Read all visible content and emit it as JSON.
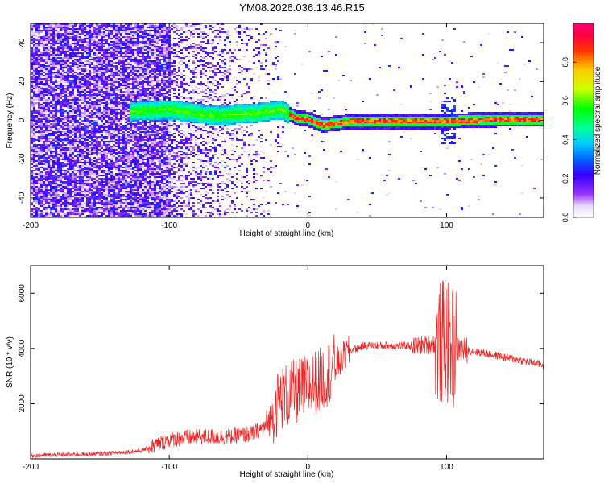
{
  "title": "YM08.2026.036.13.46.R15",
  "colors": {
    "snr_line": "#ee2222",
    "frame": "#000000"
  },
  "chart_data": [
    {
      "type": "heatmap",
      "xlabel": "Height of straight line (km)",
      "ylabel": "Frequency (Hz)",
      "xlim": [
        -200,
        170
      ],
      "ylim": [
        -50,
        50
      ],
      "x_ticks": [
        -200,
        -100,
        0,
        100
      ],
      "y_ticks": [
        -40,
        -20,
        0,
        20,
        40
      ],
      "x_tick_labels": [
        "-200",
        "-100",
        "0",
        "100"
      ],
      "y_tick_labels": [
        "-40",
        "-20",
        "0",
        "20",
        "40"
      ],
      "colorbar": {
        "label": "Normalized spectral amplitude",
        "range": [
          0,
          1
        ],
        "ticks": [
          0.0,
          0.2,
          0.4,
          0.6,
          0.8
        ],
        "tick_labels": [
          "0.0",
          "0.2",
          "0.4",
          "0.6",
          "0.8"
        ],
        "colormap": "rainbow (white-violet-blue-cyan-green-yellow-red-magenta)"
      },
      "signal_center_hz": [
        {
          "x": -130,
          "f": 5
        },
        {
          "x": -100,
          "f": 6
        },
        {
          "x": -70,
          "f": 3
        },
        {
          "x": -40,
          "f": 4
        },
        {
          "x": -20,
          "f": 6
        },
        {
          "x": -10,
          "f": 2
        },
        {
          "x": 0,
          "f": 1
        },
        {
          "x": 10,
          "f": -2
        },
        {
          "x": 30,
          "f": 0
        },
        {
          "x": 100,
          "f": 0
        },
        {
          "x": 140,
          "f": 1
        },
        {
          "x": 170,
          "f": 1
        }
      ],
      "grid": false
    },
    {
      "type": "line",
      "xlabel": "Height of straight line (km)",
      "ylabel": "SNR (10 * v/v)",
      "xlim": [
        -200,
        170
      ],
      "ylim": [
        0,
        7000
      ],
      "x_ticks": [
        -200,
        -100,
        0,
        100
      ],
      "y_ticks": [
        2000,
        4000,
        6000
      ],
      "x_tick_labels": [
        "-200",
        "-100",
        "0",
        "100"
      ],
      "y_tick_labels": [
        "2000",
        "4000",
        "6000"
      ],
      "series": [
        {
          "x": [
            -200,
            -150,
            -120,
            -100,
            -80,
            -60,
            -40,
            -30,
            -20,
            -10,
            0,
            10,
            20,
            30,
            40,
            60,
            80,
            95,
            100,
            105,
            120,
            140,
            170
          ],
          "values": [
            120,
            180,
            300,
            700,
            800,
            800,
            900,
            1200,
            2200,
            2400,
            2600,
            2900,
            3400,
            3900,
            4100,
            4100,
            4100,
            4200,
            4300,
            4000,
            3900,
            3700,
            3400
          ]
        }
      ],
      "grid": false
    }
  ]
}
